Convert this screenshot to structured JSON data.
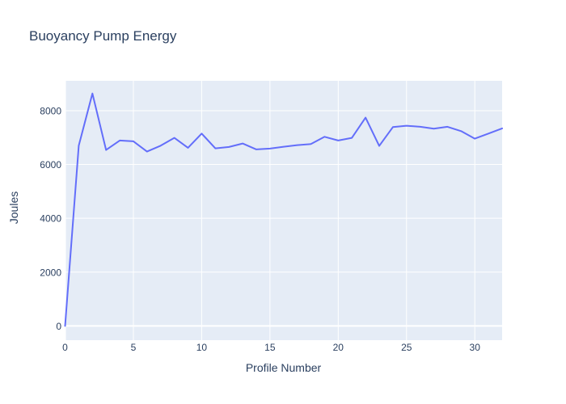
{
  "chart_data": {
    "type": "line",
    "title": "Buoyancy Pump Energy",
    "xlabel": "Profile Number",
    "ylabel": "Joules",
    "x": [
      0,
      1,
      2,
      3,
      4,
      5,
      6,
      7,
      8,
      9,
      10,
      11,
      12,
      13,
      14,
      15,
      16,
      17,
      18,
      19,
      20,
      21,
      22,
      23,
      24,
      25,
      26,
      27,
      28,
      29,
      30,
      31,
      32
    ],
    "values": [
      0,
      6700,
      8640,
      6540,
      6890,
      6860,
      6480,
      6700,
      6990,
      6620,
      7150,
      6600,
      6650,
      6780,
      6560,
      6590,
      6660,
      6720,
      6760,
      7030,
      6890,
      6990,
      7740,
      6690,
      7390,
      7440,
      7400,
      7330,
      7400,
      7240,
      6960,
      7150,
      7340
    ],
    "x_ticks": [
      0,
      5,
      10,
      15,
      20,
      25,
      30
    ],
    "y_ticks": [
      0,
      2000,
      4000,
      6000,
      8000
    ],
    "xlim": [
      0,
      32
    ],
    "ylim": [
      -530,
      9110
    ],
    "grid": true,
    "legend": false,
    "line_color": "#636efa",
    "plot_bg": "#e5ecf6",
    "grid_color": "#ffffff",
    "font_color": "#2a3f5f",
    "paper_bg": "#ffffff",
    "line_width": 2
  }
}
